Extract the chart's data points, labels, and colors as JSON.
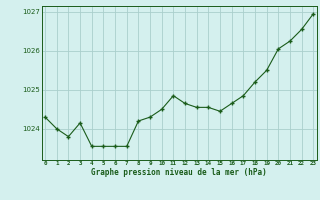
{
  "x": [
    0,
    1,
    2,
    3,
    4,
    5,
    6,
    7,
    8,
    9,
    10,
    11,
    12,
    13,
    14,
    15,
    16,
    17,
    18,
    19,
    20,
    21,
    22,
    23
  ],
  "y": [
    1024.3,
    1024.0,
    1023.8,
    1024.15,
    1023.55,
    1023.55,
    1023.55,
    1023.55,
    1024.2,
    1024.3,
    1024.5,
    1024.85,
    1024.65,
    1024.55,
    1024.55,
    1024.45,
    1024.65,
    1024.85,
    1025.2,
    1025.5,
    1026.05,
    1026.25,
    1026.55,
    1026.95
  ],
  "line_color": "#1a5c1a",
  "marker_color": "#1a5c1a",
  "bg_color": "#d4f0ee",
  "grid_color": "#aacfcc",
  "xlabel": "Graphe pression niveau de la mer (hPa)",
  "xlabel_color": "#1a5c1a",
  "yticks": [
    1024,
    1025,
    1026,
    1027
  ],
  "ylim": [
    1023.2,
    1027.15
  ],
  "xlim": [
    -0.3,
    23.3
  ],
  "xtick_labels": [
    "0",
    "1",
    "2",
    "3",
    "4",
    "5",
    "6",
    "7",
    "8",
    "9",
    "10",
    "11",
    "12",
    "13",
    "14",
    "15",
    "16",
    "17",
    "18",
    "19",
    "20",
    "21",
    "22",
    "23"
  ],
  "axis_color": "#1a5c1a"
}
